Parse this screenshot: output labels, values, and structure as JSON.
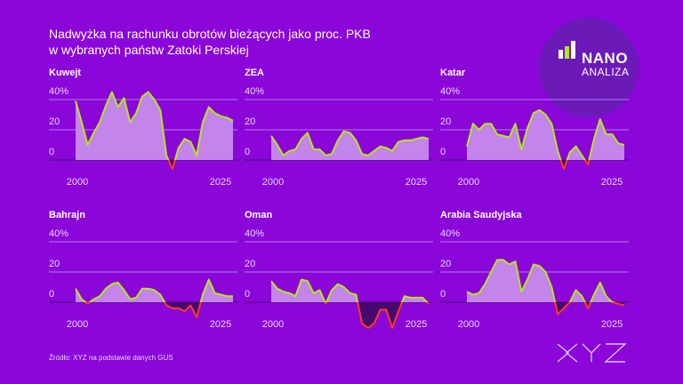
{
  "title_line1": "Nadwyżka na rachunku obrotów bieżących jako proc. PKB",
  "title_line2": "w wybranych państw Zatoki Perskiej",
  "source": "Źródło: XYZ na podstawie danych GUS",
  "logo": {
    "line1": "NANO",
    "line2": "ANALIZA",
    "brand": "XYZ"
  },
  "colors": {
    "background": "#8a06d9",
    "positive_fill": "#c384ec",
    "negative_fill": "#45086e",
    "line_positive": "#b5e61d",
    "line_negative": "#ff3b1f"
  },
  "chart_data": [
    {
      "type": "area",
      "title": "Kuwejt",
      "x_start": 2000,
      "x_end": 2026,
      "xticks": [
        "2000",
        "2025"
      ],
      "yticks": [
        "40%",
        "20",
        "0"
      ],
      "ylim": [
        -10,
        45
      ],
      "values": [
        39,
        25,
        10,
        18,
        25,
        36,
        45,
        35,
        41,
        25,
        31,
        42,
        45,
        40,
        33,
        3,
        -6,
        8,
        14,
        12,
        3,
        25,
        35,
        31,
        29,
        28,
        26
      ]
    },
    {
      "type": "area",
      "title": "ZEA",
      "x_start": 2000,
      "x_end": 2026,
      "xticks": [
        "2000",
        "2025"
      ],
      "yticks": [
        "40%",
        "20",
        "0"
      ],
      "ylim": [
        -10,
        45
      ],
      "values": [
        16,
        10,
        3,
        6,
        7,
        14,
        18,
        7,
        7,
        3,
        4,
        13,
        19,
        18,
        13,
        4,
        3,
        6,
        9,
        8,
        6,
        12,
        13,
        13,
        14,
        15,
        14
      ]
    },
    {
      "type": "area",
      "title": "Katar",
      "x_start": 2000,
      "x_end": 2026,
      "xticks": [
        "2000",
        "2025"
      ],
      "yticks": [
        "40%",
        "20",
        "0"
      ],
      "ylim": [
        -10,
        45
      ],
      "values": [
        9,
        24,
        20,
        24,
        24,
        17,
        16,
        15,
        24,
        7,
        21,
        31,
        33,
        30,
        24,
        6,
        -6,
        5,
        9,
        3,
        -3,
        14,
        27,
        17,
        17,
        11,
        10
      ]
    },
    {
      "type": "area",
      "title": "Bahrajn",
      "x_start": 2000,
      "x_end": 2026,
      "xticks": [
        "2000",
        "2025"
      ],
      "yticks": [
        "40%",
        "20",
        "0"
      ],
      "ylim": [
        -20,
        45
      ],
      "values": [
        9,
        2,
        -1,
        2,
        4,
        9,
        12,
        13,
        8,
        2,
        3,
        9,
        9,
        8,
        5,
        -2,
        -4,
        -4,
        -6,
        -2,
        -10,
        5,
        15,
        6,
        5,
        4,
        4
      ]
    },
    {
      "type": "area",
      "title": "Oman",
      "x_start": 2000,
      "x_end": 2026,
      "xticks": [
        "2000",
        "2025"
      ],
      "yticks": [
        "40%",
        "20",
        "0"
      ],
      "ylim": [
        -20,
        45
      ],
      "values": [
        14,
        9,
        7,
        6,
        4,
        15,
        14,
        6,
        8,
        -1,
        8,
        12,
        10,
        6,
        5,
        -14,
        -17,
        -14,
        -5,
        -5,
        -17,
        -6,
        4,
        3,
        3,
        3,
        -1
      ]
    },
    {
      "type": "area",
      "title": "Arabia Saudyjska",
      "x_start": 2000,
      "x_end": 2026,
      "xticks": [
        "2000",
        "2025"
      ],
      "yticks": [
        "40%",
        "20",
        "0"
      ],
      "ylim": [
        -20,
        45
      ],
      "values": [
        7,
        5,
        6,
        12,
        20,
        28,
        28,
        25,
        27,
        7,
        15,
        25,
        24,
        20,
        10,
        -8,
        -4,
        0,
        8,
        4,
        -4,
        5,
        13,
        4,
        0,
        -1,
        -2
      ]
    }
  ]
}
